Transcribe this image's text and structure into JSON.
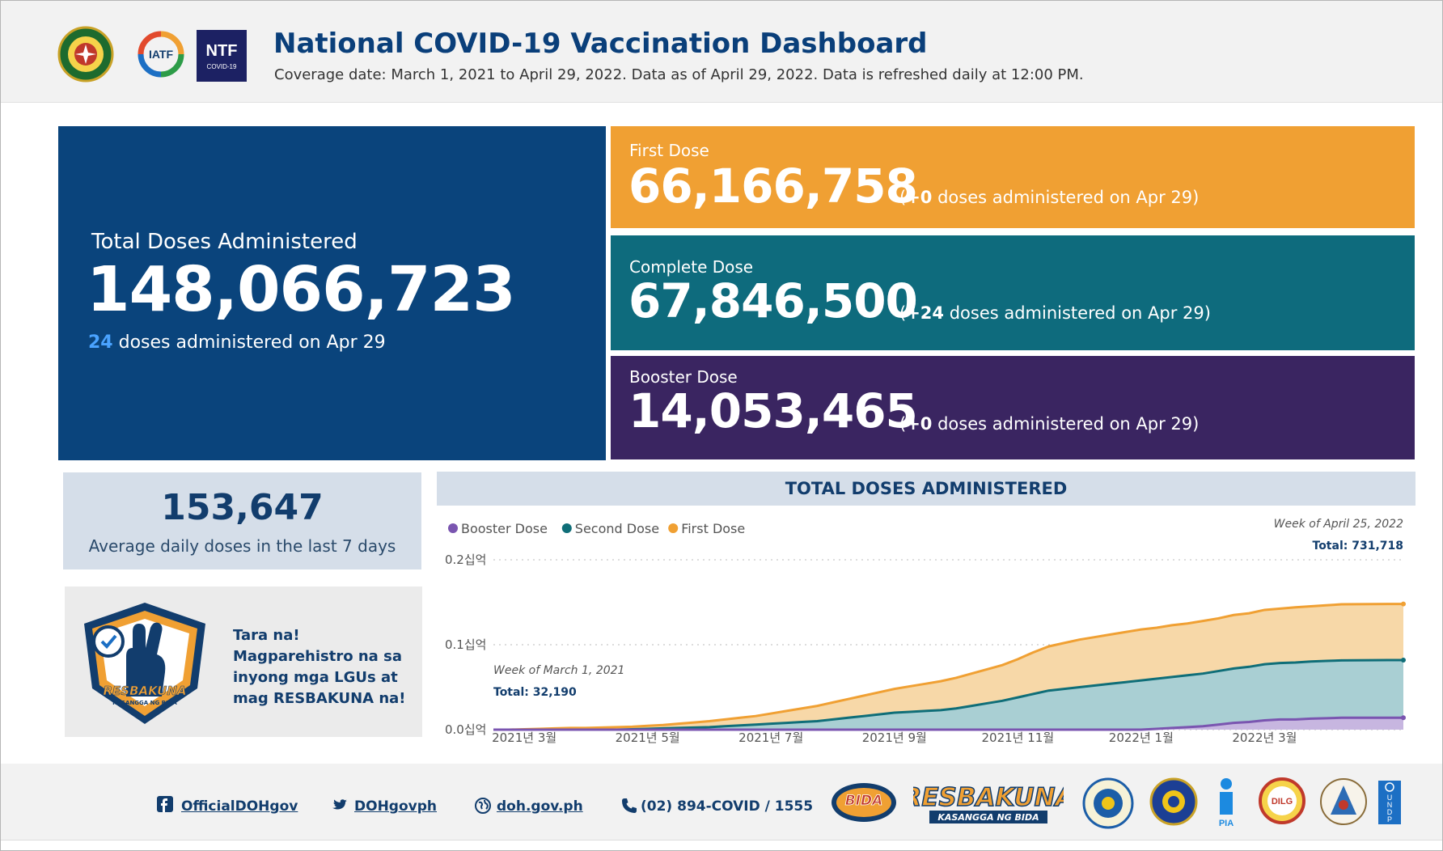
{
  "header": {
    "title": "National COVID-19 Vaccination Dashboard",
    "subtitle": "Coverage date: March 1, 2021 to April 29, 2022. Data as of April 29, 2022. Data is refreshed daily at 12:00 PM.",
    "logos": [
      "doh-seal",
      "iatf-logo",
      "ntf-covid19-logo"
    ],
    "ntf_text": "NTF",
    "ntf_sub": "COVID-19",
    "iatf_text": "IATF"
  },
  "total": {
    "label": "Total Doses Administered",
    "value": "148,066,723",
    "today_count": "24",
    "today_text": " doses administered on Apr 29"
  },
  "first_dose": {
    "label": "First Dose",
    "value": "66,166,758",
    "delta": "+0",
    "note_prefix": "(",
    "note_suffix": " doses administered on Apr 29)"
  },
  "complete_dose": {
    "label": "Complete Dose",
    "value": "67,846,500",
    "delta": "+24",
    "note_prefix": "(",
    "note_suffix": " doses administered on Apr 29)"
  },
  "booster_dose": {
    "label": "Booster Dose",
    "value": "14,053,465",
    "delta": "+0",
    "note_prefix": "(",
    "note_suffix": " doses administered on Apr 29)"
  },
  "average": {
    "value": "153,647",
    "label": "Average daily doses in the last 7 days"
  },
  "promo": {
    "text": "Tara na! Magparehistro na sa inyong mga LGUs at mag RESBAKUNA na!",
    "badge_text": "RESBAKUNA",
    "badge_sub": "KASANGGA NG BIDA"
  },
  "chart_data": {
    "type": "area",
    "title": "TOTAL DOSES ADMINISTERED",
    "legend": [
      "Booster Dose",
      "Second Dose",
      "First Dose"
    ],
    "colors": {
      "booster": "#7a55b0",
      "second": "#0f6e78",
      "first": "#f0a033"
    },
    "y_ticks": [
      "0.0십억",
      "0.1십억",
      "0.2십억"
    ],
    "ylim": [
      0,
      0.2
    ],
    "x_ticks": [
      "2021년 3월",
      "2021년 5월",
      "2021년 7월",
      "2021년 9월",
      "2021년 11월",
      "2022년 1월",
      "2022년 3월"
    ],
    "x_tick_pos": [
      2,
      10,
      18,
      26,
      34,
      42,
      50
    ],
    "annotation_start": {
      "label": "Week of March 1, 2021",
      "total": "Total: 32,190"
    },
    "annotation_end": {
      "label": "Week of April 25, 2022",
      "total": "Total: 731,718"
    },
    "series": [
      {
        "name": "Booster Dose",
        "values": [
          0,
          0,
          0,
          0,
          0,
          0,
          0,
          0,
          0,
          0,
          0,
          0,
          0,
          0,
          0,
          0,
          0,
          0,
          0,
          0,
          0,
          0,
          0,
          0,
          0,
          0,
          0,
          0,
          0,
          0,
          0,
          0,
          0,
          0,
          0,
          0,
          0,
          0,
          0,
          0,
          0,
          0,
          0,
          0.001,
          0.002,
          0.003,
          0.004,
          0.006,
          0.008,
          0.009,
          0.011,
          0.012,
          0.012,
          0.013,
          0.0135,
          0.014,
          0.014,
          0.014,
          0.0141,
          0.0141
        ]
      },
      {
        "name": "Second Dose",
        "values": [
          0,
          0,
          0,
          0,
          0,
          0,
          0,
          0,
          0,
          0.0005,
          0.001,
          0.0015,
          0.002,
          0.0025,
          0.003,
          0.004,
          0.005,
          0.006,
          0.007,
          0.008,
          0.009,
          0.01,
          0.012,
          0.014,
          0.016,
          0.018,
          0.02,
          0.021,
          0.022,
          0.023,
          0.025,
          0.028,
          0.031,
          0.034,
          0.038,
          0.042,
          0.046,
          0.048,
          0.05,
          0.052,
          0.054,
          0.056,
          0.058,
          0.059,
          0.06,
          0.061,
          0.062,
          0.063,
          0.064,
          0.065,
          0.066,
          0.0665,
          0.067,
          0.0672,
          0.0674,
          0.0676,
          0.0677,
          0.0678,
          0.0678,
          0.0678
        ]
      },
      {
        "name": "First Dose",
        "values": [
          0,
          0,
          0.0005,
          0.001,
          0.0015,
          0.002,
          0.002,
          0.0025,
          0.003,
          0.003,
          0.0035,
          0.004,
          0.005,
          0.006,
          0.007,
          0.008,
          0.009,
          0.01,
          0.012,
          0.014,
          0.016,
          0.018,
          0.02,
          0.022,
          0.024,
          0.026,
          0.028,
          0.03,
          0.032,
          0.034,
          0.036,
          0.038,
          0.04,
          0.042,
          0.045,
          0.049,
          0.052,
          0.054,
          0.056,
          0.057,
          0.058,
          0.059,
          0.06,
          0.06,
          0.061,
          0.061,
          0.062,
          0.062,
          0.063,
          0.063,
          0.064,
          0.064,
          0.065,
          0.065,
          0.0655,
          0.066,
          0.066,
          0.066,
          0.0661,
          0.0661
        ]
      }
    ]
  },
  "footer": {
    "facebook": "OfficialDOHgov",
    "twitter": "DOHgovph",
    "website": "doh.gov.ph",
    "phone": "(02) 894-COVID / 1555",
    "partners": [
      "BIDA SOLUSYON",
      "RESBAKUNA",
      "PCOO",
      "DICT",
      "PIA",
      "DILG",
      "NTF",
      "UNDP"
    ],
    "bida_text": "BIDA",
    "resbakuna_text": "RESBAKUNA",
    "resbakuna_sub": "KASANGGA NG BIDA",
    "pia_text": "PIA",
    "dilg_text": "DILG",
    "undp_text": [
      "U",
      "N",
      "D",
      "P"
    ]
  }
}
